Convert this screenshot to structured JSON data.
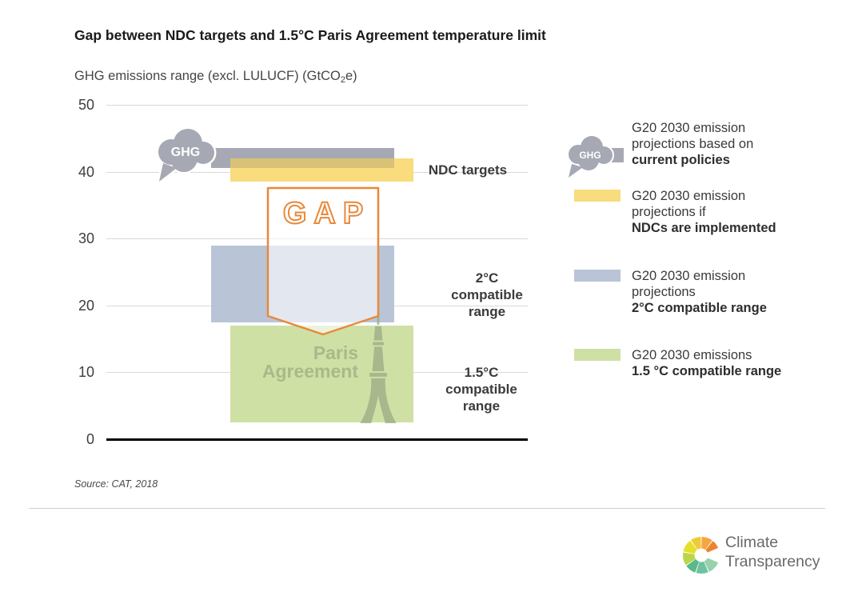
{
  "header": {
    "title": "Gap between NDC targets and 1.5°C Paris Agreement temperature limit"
  },
  "subtitle": {
    "pre": "GHG emissions range (excl. LULUCF) (GtCO",
    "sub": "2",
    "post": "e)"
  },
  "chart_data": {
    "type": "bar",
    "variant": "floating-range-bars",
    "title": "Gap between NDC targets and 1.5°C Paris Agreement temperature limit",
    "ylabel": "GHG emissions range (excl. LULUCF) (GtCO2e)",
    "ylim": [
      0,
      50
    ],
    "yticks": [
      50,
      40,
      30,
      20,
      10,
      0
    ],
    "grid": true,
    "legend_position": "right",
    "series": [
      {
        "name": "G20 2030 emission projections based on current policies",
        "range_gtco2e": [
          40.5,
          43.5
        ],
        "color": "#a6a9b4"
      },
      {
        "name": "G20 2030 emission projections if NDCs are implemented (NDC targets)",
        "range_gtco2e": [
          38.5,
          42.0
        ],
        "color": "#f8dc7d"
      },
      {
        "name": "G20 2030 emission projections 2°C compatible range",
        "range_gtco2e": [
          17.5,
          29.0
        ],
        "color": "#b9c4d7"
      },
      {
        "name": "G20 2030 emissions 1.5°C compatible range",
        "range_gtco2e": [
          2.5,
          17.0
        ],
        "color": "#cfe0a5"
      }
    ],
    "overlap_policies_ndc": {
      "range_gtco2e": [
        40.5,
        42.0
      ],
      "color": "#d9c276"
    },
    "annotations": [
      {
        "text": "GAP",
        "type": "banner-arrow",
        "color": "#e8893a",
        "spans": "from below NDC targets down into 1.5°C compatible range"
      },
      {
        "text": "GHG",
        "type": "cloud-icon-label",
        "on": "current policies bar"
      },
      {
        "text": "Paris Agreement",
        "type": "watermark-with-eiffel-tower",
        "on": "1.5°C compatible range bar"
      }
    ],
    "source": "Source: CAT, 2018"
  },
  "plot": {
    "cloud_label": "GHG",
    "gap_label": "GAP",
    "paris_line1": "Paris",
    "paris_line2": "Agreement",
    "labels": {
      "ndc": "NDC targets",
      "two_deg": "2°C compatible range",
      "one_five": "1.5°C compatible range"
    }
  },
  "legend": {
    "items": [
      {
        "icon": "ghg-cloud",
        "line1": "G20 2030 emission",
        "line2": "projections based on",
        "bold_line": "current policies",
        "color": "#a6a9b4"
      },
      {
        "icon": "swatch",
        "line1": "G20 2030 emission",
        "line2": "projections if",
        "bold_line": "NDCs are implemented",
        "color": "#f8dc7d"
      },
      {
        "icon": "swatch",
        "line1": "G20 2030 emission",
        "line2": "projections",
        "bold_line": "2°C compatible range",
        "color": "#b9c4d7"
      },
      {
        "icon": "swatch",
        "line1": "G20 2030 emissions",
        "line2": "",
        "bold_line": "1.5 °C compatible range",
        "color": "#cfe0a5"
      }
    ]
  },
  "source": "Source: CAT, 2018",
  "footer": {
    "logo_line1": "Climate",
    "logo_line2": "Transparency",
    "wheel_segments": [
      {
        "from": 22,
        "to": 66,
        "color": "#97D2AA"
      },
      {
        "from": 66,
        "to": 108,
        "color": "#6FC2A0"
      },
      {
        "from": 108,
        "to": 146,
        "color": "#58B98C"
      },
      {
        "from": 146,
        "to": 190,
        "color": "#BCD54A"
      },
      {
        "from": 190,
        "to": 234,
        "color": "#E7E02B"
      },
      {
        "from": 234,
        "to": 270,
        "color": "#EFCB38"
      },
      {
        "from": 270,
        "to": 308,
        "color": "#F6A541"
      },
      {
        "from": 308,
        "to": 338,
        "color": "#EE8231"
      }
    ]
  },
  "colors": {
    "accent_orange": "#e8893a",
    "grid_line": "#d9d9d9",
    "zero_line": "#000000",
    "text_dark": "#3c3c3c",
    "paris_green": "#aab989"
  }
}
